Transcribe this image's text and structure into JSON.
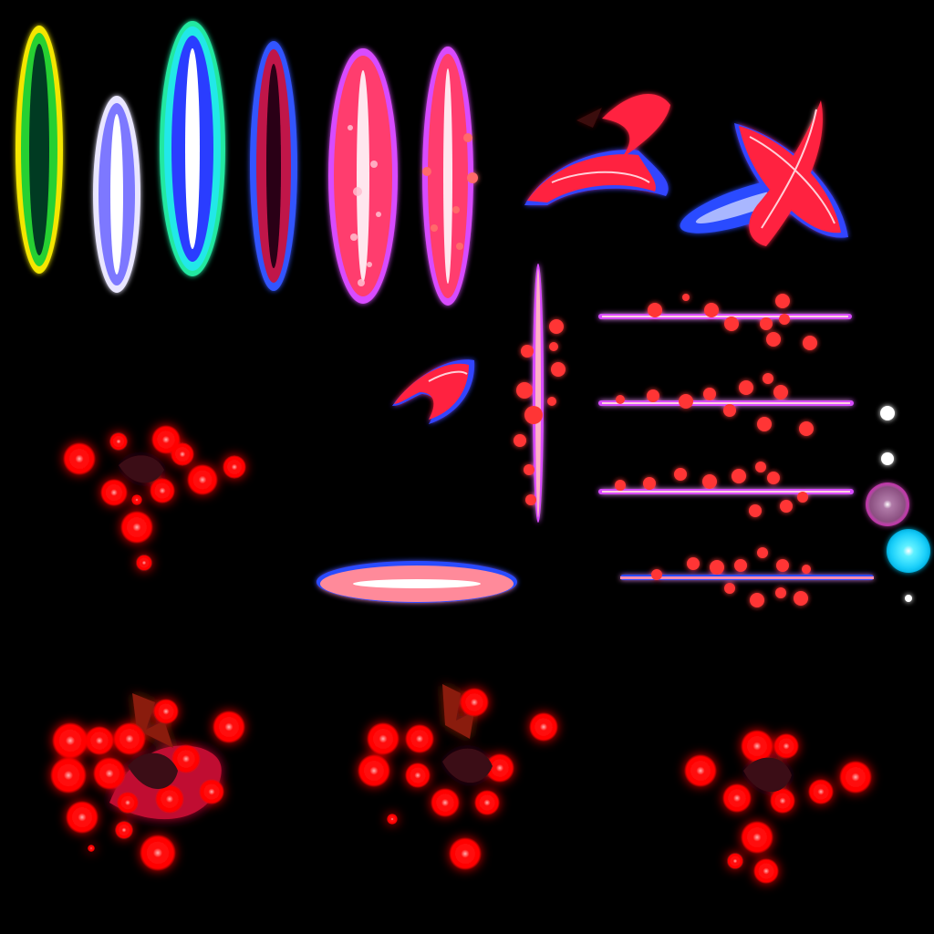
{
  "sprite_sheet": {
    "background": "#000000",
    "blade_trails": [
      {
        "name": "blade-trail-green-yellow",
        "outer": "#f4e600",
        "mid": "#28d030",
        "core": "#063a22"
      },
      {
        "name": "blade-trail-lavender",
        "outer": "#ffffff",
        "mid": "#7d78ff",
        "core": "#ffffff"
      },
      {
        "name": "blade-trail-cyan-blue",
        "outer": "#22e8e8",
        "mid": "#2b3cff",
        "core": "#ffffff"
      },
      {
        "name": "blade-trail-blue-crimson",
        "outer": "#3355ff",
        "mid": "#c0144a",
        "core": "#2a0018"
      },
      {
        "name": "blade-trail-pink-magenta",
        "outer": "#d84bff",
        "mid": "#ff3d6e",
        "core": "#ffe6ee"
      },
      {
        "name": "blade-trail-pink-ember",
        "outer": "#d84bff",
        "mid": "#ff3d6e",
        "core": "#ffe6ee"
      }
    ],
    "crescent_slashes": [
      {
        "name": "crescent-slash-red",
        "color": "#ff2240",
        "edge": "#3344ff"
      },
      {
        "name": "x-slash-red-blue",
        "color": "#ff2240",
        "edge": "#2a4bff"
      },
      {
        "name": "small-crescent-slash",
        "color": "#ff2240",
        "edge": "#3344ff"
      }
    ],
    "ember_lines": [
      {
        "name": "ember-line-vertical",
        "color": "#ff3f7a"
      },
      {
        "name": "ember-line-horizontal-1",
        "color": "#ff3f7a"
      },
      {
        "name": "ember-line-horizontal-2",
        "color": "#ff3f7a"
      },
      {
        "name": "ember-line-horizontal-3",
        "color": "#ff3f7a"
      },
      {
        "name": "ember-line-horizontal-4",
        "color": "#ff3f7a"
      }
    ],
    "flat_flash": {
      "name": "flat-flash-ellipse",
      "color": "#ff8a9a",
      "edge": "#2a4bff"
    },
    "orbs": [
      {
        "name": "white-dot-large",
        "color": "#ffffff"
      },
      {
        "name": "white-dot-medium",
        "color": "#ffffff"
      },
      {
        "name": "violet-orb",
        "color": "#9a5a8a"
      },
      {
        "name": "cyan-orb",
        "color": "#12e0ff"
      },
      {
        "name": "white-dot-small",
        "color": "#ffffff"
      }
    ],
    "blood_bursts": [
      {
        "name": "blood-burst-small",
        "color": "#ff0000"
      },
      {
        "name": "blood-burst-large",
        "color": "#ff0000"
      },
      {
        "name": "blood-burst-medium",
        "color": "#ff0000"
      },
      {
        "name": "blood-burst-fading",
        "color": "#ff0000"
      }
    ]
  }
}
